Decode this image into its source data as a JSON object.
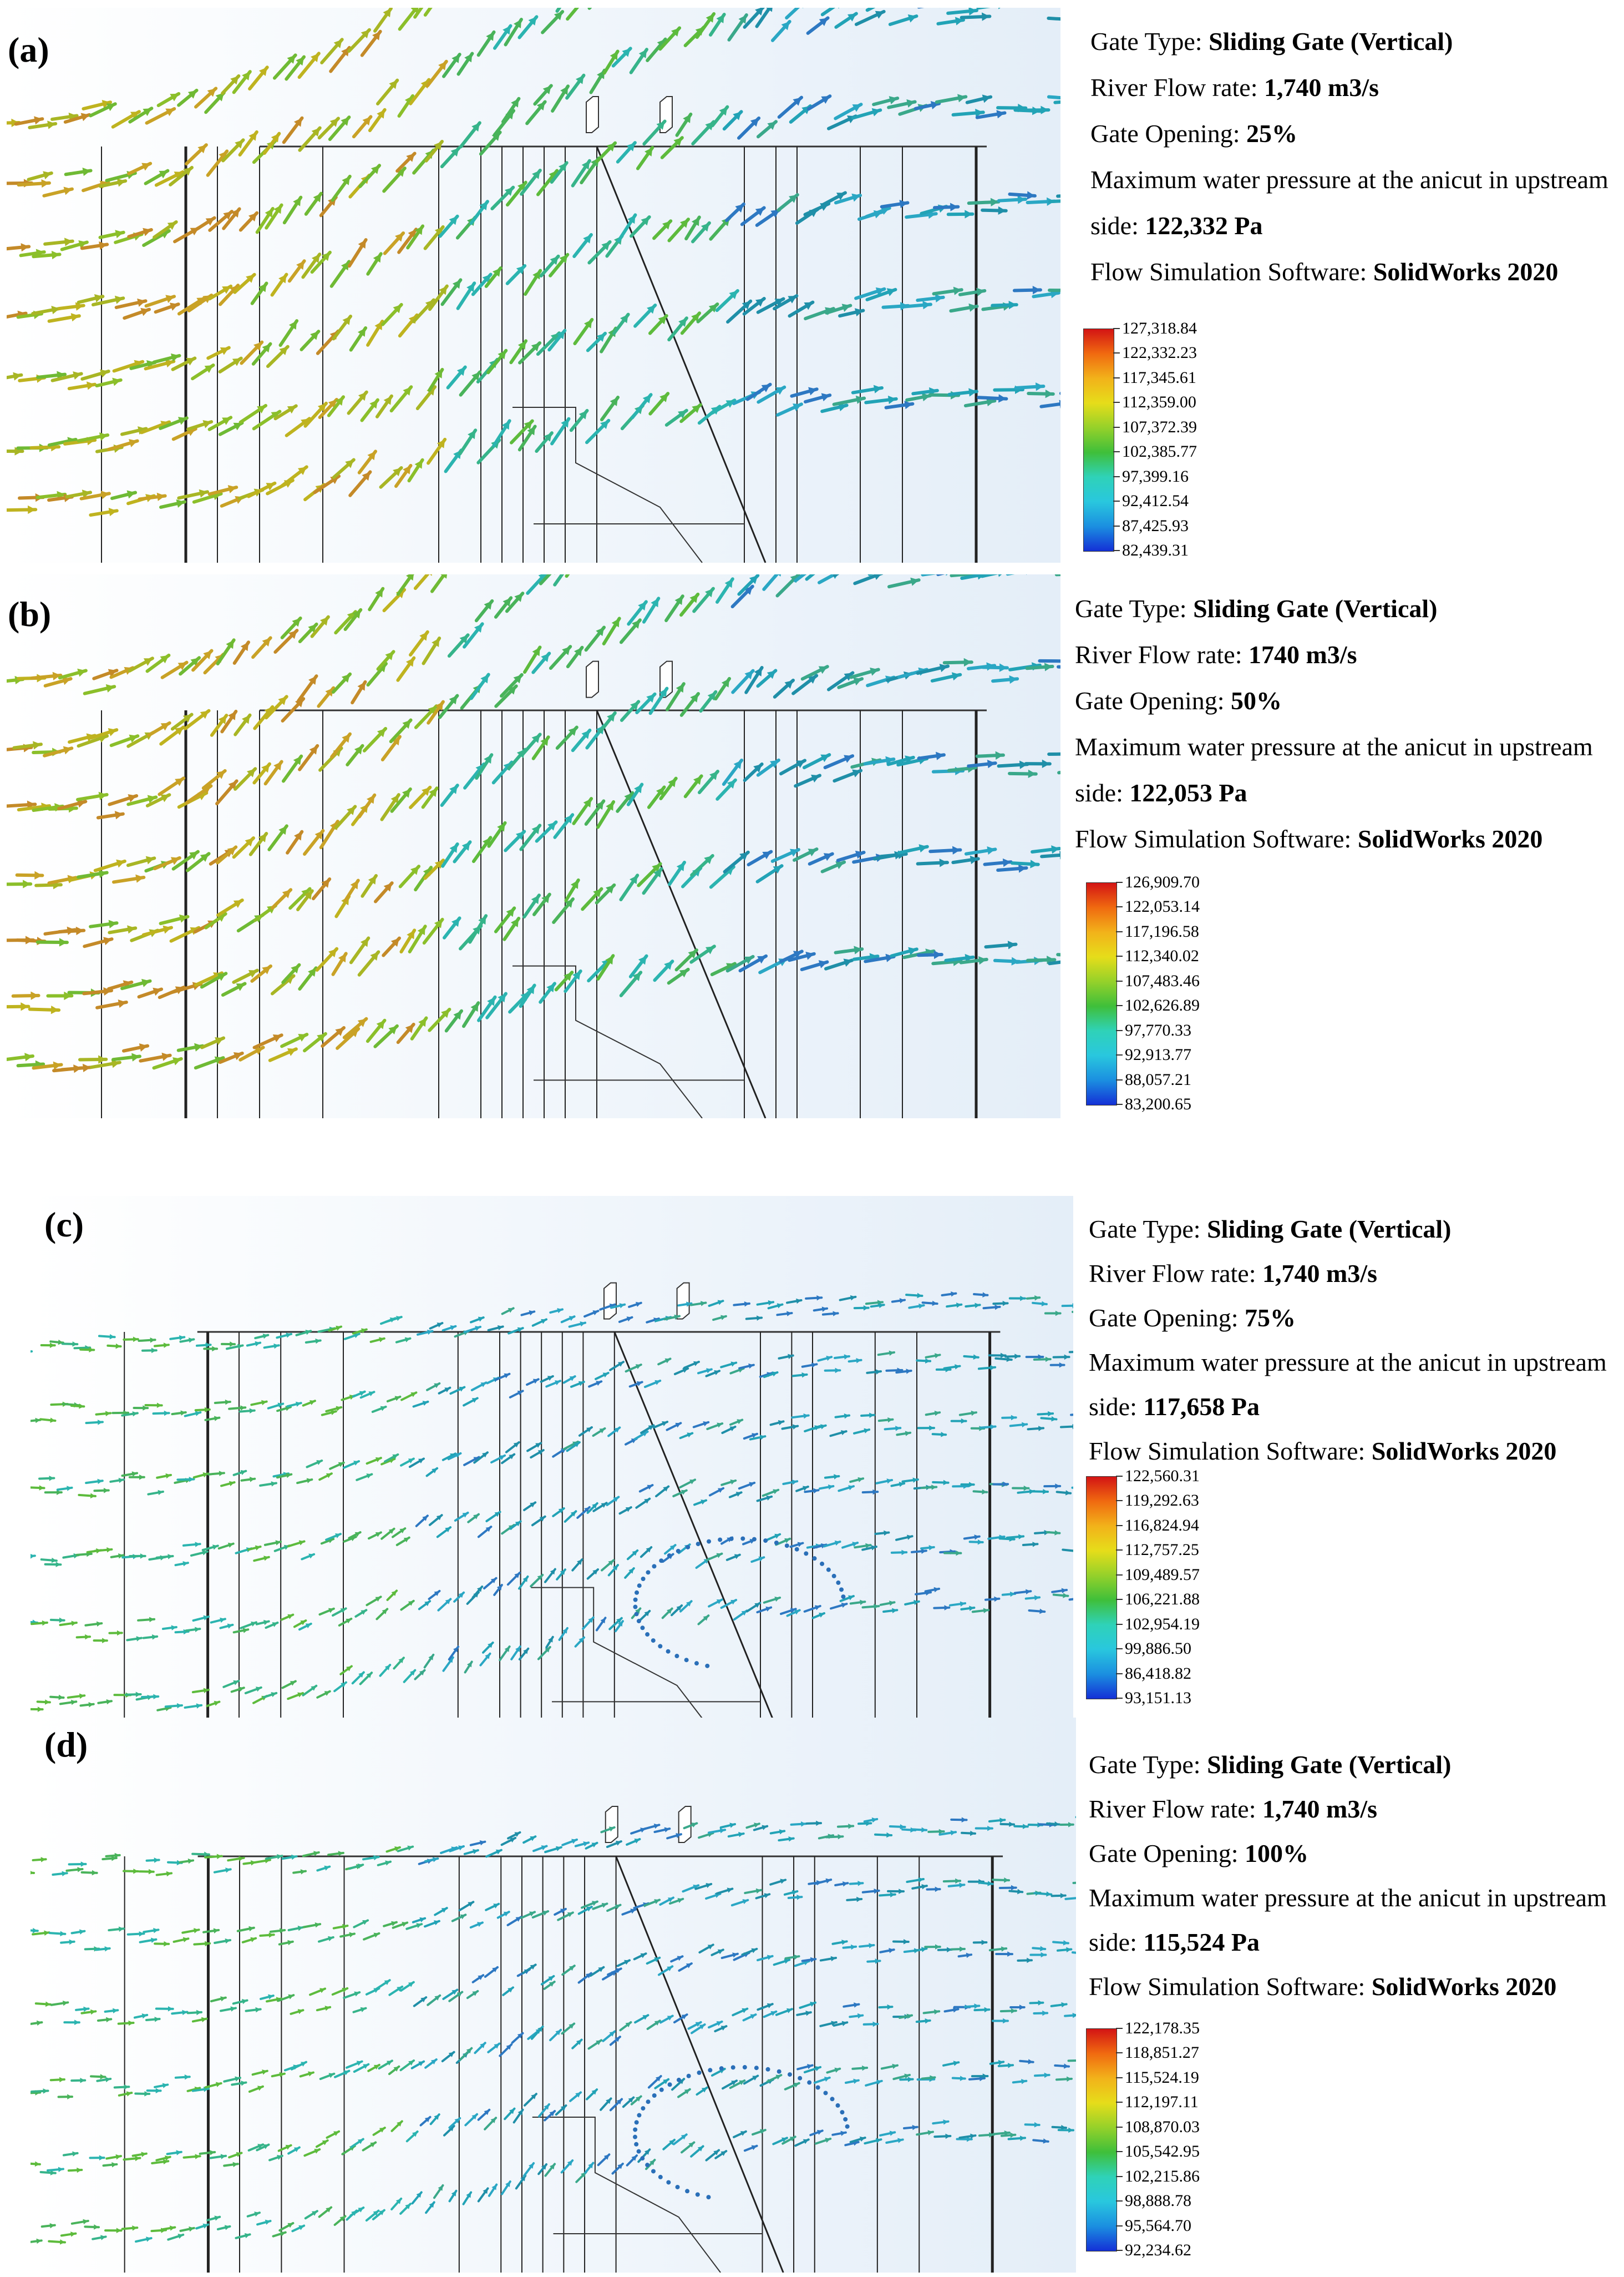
{
  "colors": {
    "scale": [
      "#d31414",
      "#f06a10",
      "#f2b21a",
      "#e6dd1a",
      "#95d12a",
      "#3fbf3a",
      "#2fd2b8",
      "#29c7de",
      "#1b8fe0",
      "#1430d6"
    ]
  },
  "panels": [
    {
      "id": "a",
      "label": "(a)",
      "gate_type_label": "Gate Type:",
      "gate_type_value": "Sliding Gate (Vertical)",
      "flow_rate_label": "River Flow rate:",
      "flow_rate_value": "1,740 m3/s",
      "gate_opening_label": "Gate Opening:",
      "gate_opening_value": "25%",
      "pressure_label_1": "Maximum water pressure at the anicut in upstream",
      "pressure_label_2": "side:",
      "pressure_value": "122,332 Pa",
      "software_label": "Flow Simulation Software:",
      "software_value": "SolidWorks 2020",
      "legend": [
        "127,318.84",
        "122,332.23",
        "117,345.61",
        "112,359.00",
        "107,372.39",
        "102,385.77",
        "97,399.16",
        "92,412.54",
        "87,425.93",
        "82,439.31"
      ],
      "flow_tone": "warm"
    },
    {
      "id": "b",
      "label": "(b)",
      "gate_type_label": "Gate Type:",
      "gate_type_value": "Sliding Gate (Vertical)",
      "flow_rate_label": "River Flow rate:",
      "flow_rate_value": "1740 m3/s",
      "gate_opening_label": "Gate Opening:",
      "gate_opening_value": "50%",
      "pressure_label_1": "Maximum water pressure at the anicut in upstream",
      "pressure_label_2": "side:",
      "pressure_value": "122,053 Pa",
      "software_label": "Flow Simulation Software:",
      "software_value": "SolidWorks 2020",
      "legend": [
        "126,909.70",
        "122,053.14",
        "117,196.58",
        "112,340.02",
        "107,483.46",
        "102,626.89",
        "97,770.33",
        "92,913.77",
        "88,057.21",
        "83,200.65"
      ],
      "flow_tone": "warm"
    },
    {
      "id": "c",
      "label": "(c)",
      "gate_type_label": "Gate Type:",
      "gate_type_value": "Sliding Gate (Vertical)",
      "flow_rate_label": "River Flow rate:",
      "flow_rate_value": "1,740 m3/s",
      "gate_opening_label": "Gate Opening:",
      "gate_opening_value": "75%",
      "pressure_label_1": "Maximum water pressure at the anicut in upstream",
      "pressure_label_2": "side:",
      "pressure_value": "117,658 Pa",
      "software_label": "Flow Simulation Software:",
      "software_value": "SolidWorks 2020",
      "legend": [
        "122,560.31",
        "119,292.63",
        "116,824.94",
        "112,757.25",
        "109,489.57",
        "106,221.88",
        "102,954.19",
        "99,886.50",
        "86,418.82",
        "93,151.13"
      ],
      "flow_tone": "cool"
    },
    {
      "id": "d",
      "label": "(d)",
      "gate_type_label": "Gate Type:",
      "gate_type_value": "Sliding Gate (Vertical)",
      "flow_rate_label": "River Flow rate:",
      "flow_rate_value": "1,740 m3/s",
      "gate_opening_label": "Gate Opening:",
      "gate_opening_value": "100%",
      "pressure_label_1": "Maximum water pressure at the anicut in upstream",
      "pressure_label_2": "side:",
      "pressure_value": "115,524 Pa",
      "software_label": "Flow Simulation Software:",
      "software_value": "SolidWorks 2020",
      "legend": [
        "122,178.35",
        "118,851.27",
        "115,524.19",
        "112,197.11",
        "108,870.03",
        "105,542.95",
        "102,215.86",
        "98,888.78",
        "95,564.70",
        "92,234.62"
      ],
      "flow_tone": "cool"
    }
  ]
}
